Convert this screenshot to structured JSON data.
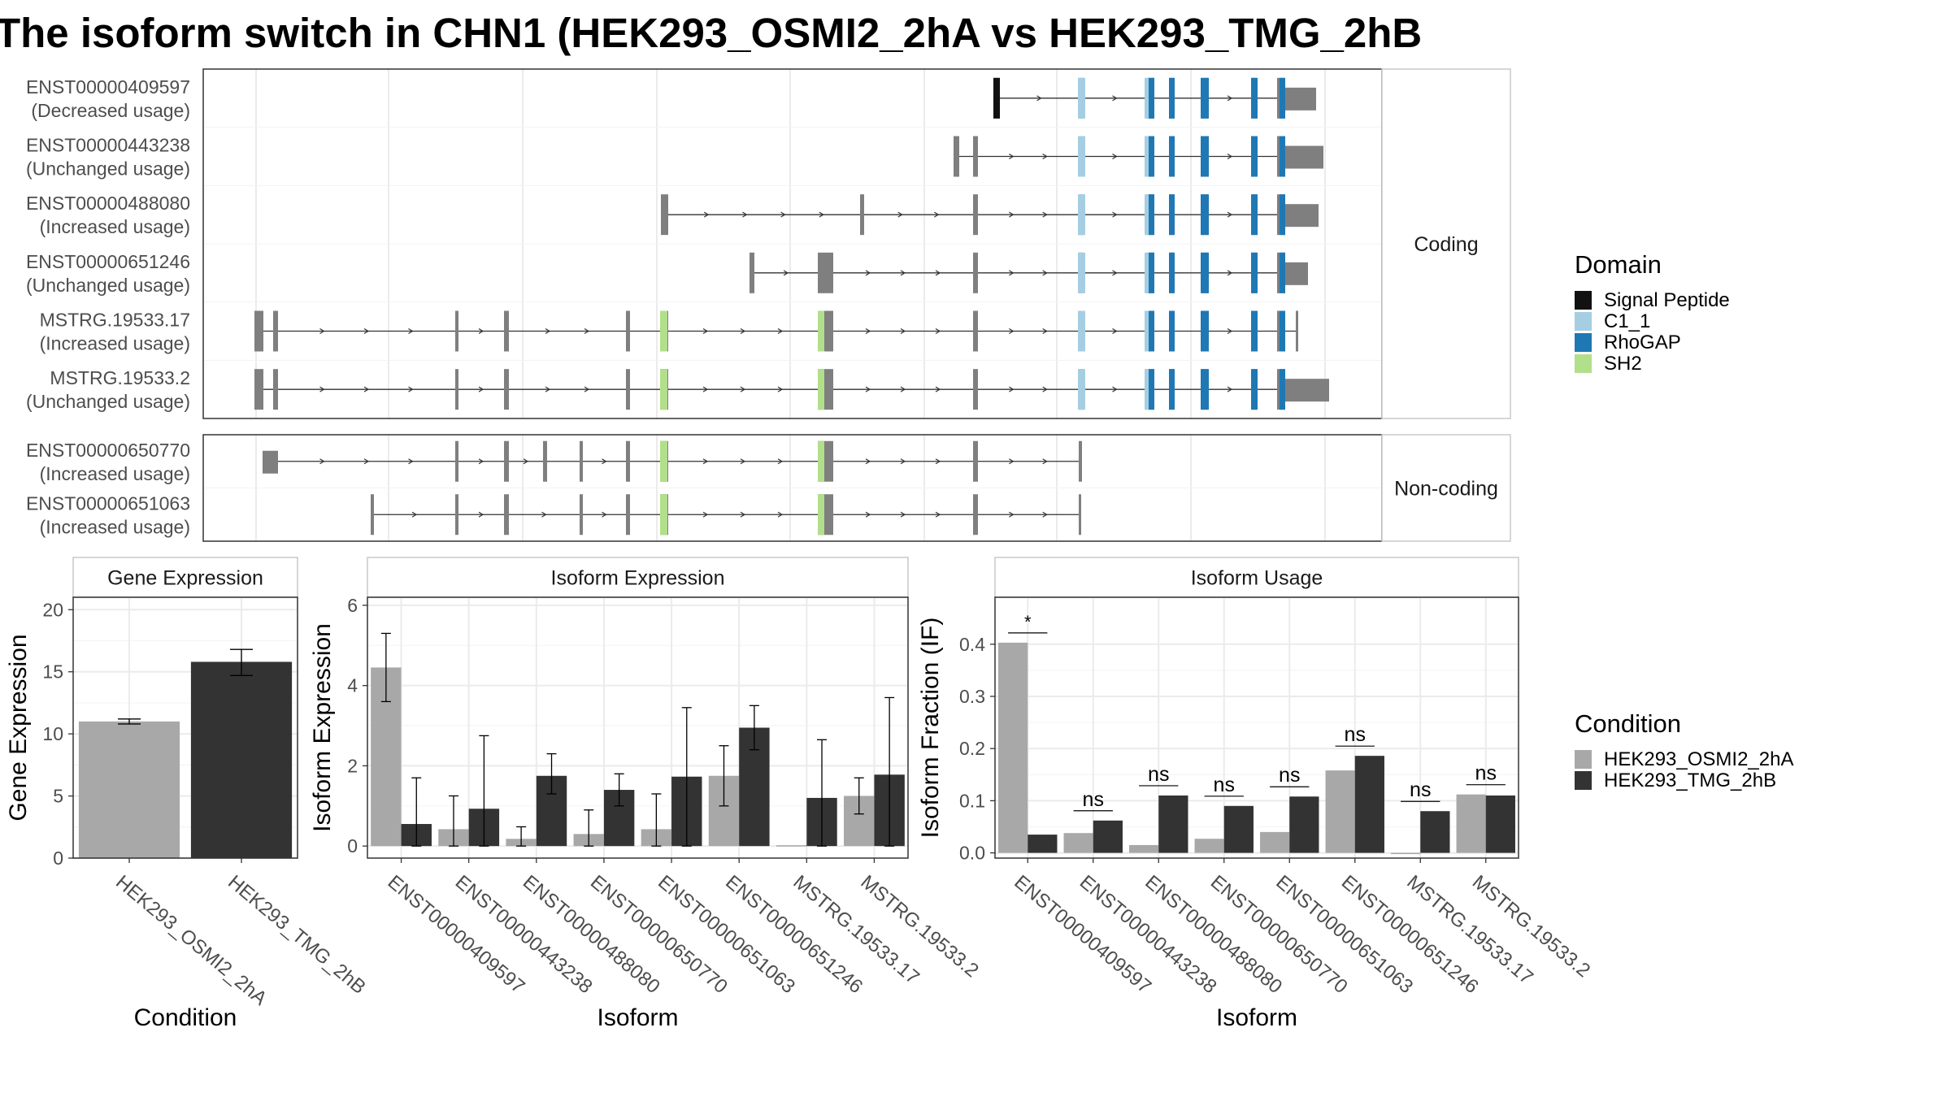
{
  "title": "The isoform switch in CHN1 (HEK293_OSMI2_2hA vs HEK293_TMG_2hB",
  "domain_legend": {
    "title": "Domain",
    "items": [
      {
        "label": "Signal Peptide",
        "color": "#111111"
      },
      {
        "label": "C1_1",
        "color": "#a6cee3"
      },
      {
        "label": "RhoGAP",
        "color": "#1f78b4"
      },
      {
        "label": "SH2",
        "color": "#b2df8a"
      }
    ]
  },
  "condition_legend": {
    "title": "Condition",
    "items": [
      {
        "label": "HEK293_OSMI2_2hA",
        "color": "#a8a8a8"
      },
      {
        "label": "HEK293_TMG_2hB",
        "color": "#333333"
      }
    ]
  },
  "chart_data": [
    {
      "type": "gene_structure",
      "panels": [
        {
          "label": "Coding",
          "isoforms": [
            {
              "name": "ENST00000409597",
              "usage": "(Decreased usage)"
            },
            {
              "name": "ENST00000443238",
              "usage": "(Unchanged usage)"
            },
            {
              "name": "ENST00000488080",
              "usage": "(Increased usage)"
            },
            {
              "name": "ENST00000651246",
              "usage": "(Unchanged usage)"
            },
            {
              "name": "MSTRG.19533.17",
              "usage": "(Increased usage)"
            },
            {
              "name": "MSTRG.19533.2",
              "usage": "(Unchanged usage)"
            }
          ]
        },
        {
          "label": "Non-coding",
          "isoforms": [
            {
              "name": "ENST00000650770",
              "usage": "(Increased usage)"
            },
            {
              "name": "ENST00000651063",
              "usage": "(Increased usage)"
            }
          ]
        }
      ]
    },
    {
      "type": "bar",
      "title": "Gene Expression",
      "xlabel": "Condition",
      "ylabel": "Gene Expression",
      "ylim": [
        0,
        21
      ],
      "yticks": [
        0,
        5,
        10,
        15,
        20
      ],
      "categories": [
        "HEK293_OSMI2_2hA",
        "HEK293_TMG_2hB"
      ],
      "series": [
        {
          "name": "HEK293_OSMI2_2hA",
          "values": [
            11.0,
            null
          ],
          "err": [
            [
              10.8,
              11.2
            ],
            null
          ]
        },
        {
          "name": "HEK293_TMG_2hB",
          "values": [
            null,
            15.8
          ],
          "err": [
            null,
            [
              14.7,
              16.8
            ]
          ]
        }
      ]
    },
    {
      "type": "bar",
      "title": "Isoform Expression",
      "xlabel": "Isoform",
      "ylabel": "Isoform Expression",
      "ylim": [
        -0.3,
        6.2
      ],
      "yticks": [
        0,
        2,
        4,
        6
      ],
      "categories": [
        "ENST00000409597",
        "ENST00000443238",
        "ENST00000488080",
        "ENST00000650770",
        "ENST00000651063",
        "ENST00000651246",
        "MSTRG.19533.17",
        "MSTRG.19533.2"
      ],
      "series": [
        {
          "name": "HEK293_OSMI2_2hA",
          "values": [
            4.45,
            0.42,
            0.18,
            0.3,
            0.42,
            1.75,
            0.02,
            1.25
          ],
          "err": [
            [
              3.6,
              5.3
            ],
            [
              0,
              1.25
            ],
            [
              0,
              0.48
            ],
            [
              0,
              0.9
            ],
            [
              0,
              1.3
            ],
            [
              1.0,
              2.5
            ],
            null,
            [
              0.8,
              1.7
            ]
          ]
        },
        {
          "name": "HEK293_TMG_2hB",
          "values": [
            0.55,
            0.93,
            1.75,
            1.4,
            1.73,
            2.95,
            1.2,
            1.78
          ],
          "err": [
            [
              0,
              1.7
            ],
            [
              0,
              2.75
            ],
            [
              1.3,
              2.3
            ],
            [
              1.0,
              1.8
            ],
            [
              0,
              3.45
            ],
            [
              2.4,
              3.5
            ],
            [
              0,
              2.65
            ],
            [
              0,
              3.7
            ]
          ]
        }
      ]
    },
    {
      "type": "bar",
      "title": "Isoform Usage",
      "xlabel": "Isoform",
      "ylabel": "Isoform Fraction (IF)",
      "ylim": [
        -0.01,
        0.49
      ],
      "yticks": [
        0.0,
        0.1,
        0.2,
        0.3,
        0.4
      ],
      "ytick_labels": [
        "0.0",
        "0.1",
        "0.2",
        "0.3",
        "0.4"
      ],
      "categories": [
        "ENST00000409597",
        "ENST00000443238",
        "ENST00000488080",
        "ENST00000650770",
        "ENST00000651063",
        "ENST00000651246",
        "MSTRG.19533.17",
        "MSTRG.19533.2"
      ],
      "series": [
        {
          "name": "HEK293_OSMI2_2hA",
          "values": [
            0.403,
            0.038,
            0.015,
            0.027,
            0.04,
            0.158,
            0.0,
            0.112
          ]
        },
        {
          "name": "HEK293_TMG_2hB",
          "values": [
            0.035,
            0.062,
            0.11,
            0.09,
            0.108,
            0.186,
            0.08,
            0.11
          ]
        }
      ],
      "significance": [
        "*",
        "ns",
        "ns",
        "ns",
        "ns",
        "ns",
        "ns",
        "ns"
      ]
    }
  ]
}
